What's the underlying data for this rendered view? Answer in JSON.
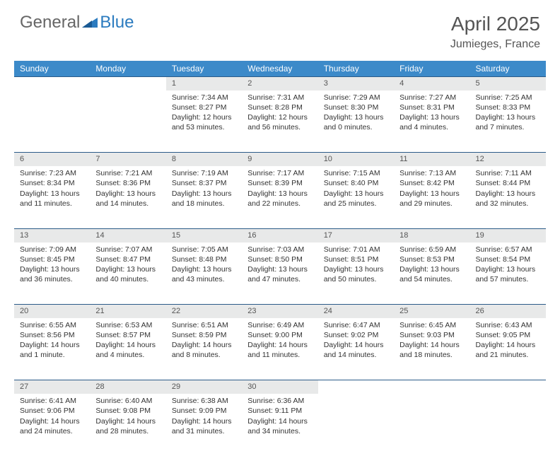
{
  "brand": {
    "part1": "General",
    "part2": "Blue"
  },
  "title": "April 2025",
  "location": "Jumieges, France",
  "colors": {
    "header_bg": "#3c8ac9",
    "header_text": "#ffffff",
    "daynum_bg": "#e8e9e9",
    "border": "#2b5b88",
    "text": "#333333",
    "title_text": "#555555"
  },
  "days_of_week": [
    "Sunday",
    "Monday",
    "Tuesday",
    "Wednesday",
    "Thursday",
    "Friday",
    "Saturday"
  ],
  "weeks": [
    {
      "nums": [
        "",
        "",
        "1",
        "2",
        "3",
        "4",
        "5"
      ],
      "cells": [
        null,
        null,
        {
          "sunrise": "Sunrise: 7:34 AM",
          "sunset": "Sunset: 8:27 PM",
          "day1": "Daylight: 12 hours",
          "day2": "and 53 minutes."
        },
        {
          "sunrise": "Sunrise: 7:31 AM",
          "sunset": "Sunset: 8:28 PM",
          "day1": "Daylight: 12 hours",
          "day2": "and 56 minutes."
        },
        {
          "sunrise": "Sunrise: 7:29 AM",
          "sunset": "Sunset: 8:30 PM",
          "day1": "Daylight: 13 hours",
          "day2": "and 0 minutes."
        },
        {
          "sunrise": "Sunrise: 7:27 AM",
          "sunset": "Sunset: 8:31 PM",
          "day1": "Daylight: 13 hours",
          "day2": "and 4 minutes."
        },
        {
          "sunrise": "Sunrise: 7:25 AM",
          "sunset": "Sunset: 8:33 PM",
          "day1": "Daylight: 13 hours",
          "day2": "and 7 minutes."
        }
      ]
    },
    {
      "nums": [
        "6",
        "7",
        "8",
        "9",
        "10",
        "11",
        "12"
      ],
      "cells": [
        {
          "sunrise": "Sunrise: 7:23 AM",
          "sunset": "Sunset: 8:34 PM",
          "day1": "Daylight: 13 hours",
          "day2": "and 11 minutes."
        },
        {
          "sunrise": "Sunrise: 7:21 AM",
          "sunset": "Sunset: 8:36 PM",
          "day1": "Daylight: 13 hours",
          "day2": "and 14 minutes."
        },
        {
          "sunrise": "Sunrise: 7:19 AM",
          "sunset": "Sunset: 8:37 PM",
          "day1": "Daylight: 13 hours",
          "day2": "and 18 minutes."
        },
        {
          "sunrise": "Sunrise: 7:17 AM",
          "sunset": "Sunset: 8:39 PM",
          "day1": "Daylight: 13 hours",
          "day2": "and 22 minutes."
        },
        {
          "sunrise": "Sunrise: 7:15 AM",
          "sunset": "Sunset: 8:40 PM",
          "day1": "Daylight: 13 hours",
          "day2": "and 25 minutes."
        },
        {
          "sunrise": "Sunrise: 7:13 AM",
          "sunset": "Sunset: 8:42 PM",
          "day1": "Daylight: 13 hours",
          "day2": "and 29 minutes."
        },
        {
          "sunrise": "Sunrise: 7:11 AM",
          "sunset": "Sunset: 8:44 PM",
          "day1": "Daylight: 13 hours",
          "day2": "and 32 minutes."
        }
      ]
    },
    {
      "nums": [
        "13",
        "14",
        "15",
        "16",
        "17",
        "18",
        "19"
      ],
      "cells": [
        {
          "sunrise": "Sunrise: 7:09 AM",
          "sunset": "Sunset: 8:45 PM",
          "day1": "Daylight: 13 hours",
          "day2": "and 36 minutes."
        },
        {
          "sunrise": "Sunrise: 7:07 AM",
          "sunset": "Sunset: 8:47 PM",
          "day1": "Daylight: 13 hours",
          "day2": "and 40 minutes."
        },
        {
          "sunrise": "Sunrise: 7:05 AM",
          "sunset": "Sunset: 8:48 PM",
          "day1": "Daylight: 13 hours",
          "day2": "and 43 minutes."
        },
        {
          "sunrise": "Sunrise: 7:03 AM",
          "sunset": "Sunset: 8:50 PM",
          "day1": "Daylight: 13 hours",
          "day2": "and 47 minutes."
        },
        {
          "sunrise": "Sunrise: 7:01 AM",
          "sunset": "Sunset: 8:51 PM",
          "day1": "Daylight: 13 hours",
          "day2": "and 50 minutes."
        },
        {
          "sunrise": "Sunrise: 6:59 AM",
          "sunset": "Sunset: 8:53 PM",
          "day1": "Daylight: 13 hours",
          "day2": "and 54 minutes."
        },
        {
          "sunrise": "Sunrise: 6:57 AM",
          "sunset": "Sunset: 8:54 PM",
          "day1": "Daylight: 13 hours",
          "day2": "and 57 minutes."
        }
      ]
    },
    {
      "nums": [
        "20",
        "21",
        "22",
        "23",
        "24",
        "25",
        "26"
      ],
      "cells": [
        {
          "sunrise": "Sunrise: 6:55 AM",
          "sunset": "Sunset: 8:56 PM",
          "day1": "Daylight: 14 hours",
          "day2": "and 1 minute."
        },
        {
          "sunrise": "Sunrise: 6:53 AM",
          "sunset": "Sunset: 8:57 PM",
          "day1": "Daylight: 14 hours",
          "day2": "and 4 minutes."
        },
        {
          "sunrise": "Sunrise: 6:51 AM",
          "sunset": "Sunset: 8:59 PM",
          "day1": "Daylight: 14 hours",
          "day2": "and 8 minutes."
        },
        {
          "sunrise": "Sunrise: 6:49 AM",
          "sunset": "Sunset: 9:00 PM",
          "day1": "Daylight: 14 hours",
          "day2": "and 11 minutes."
        },
        {
          "sunrise": "Sunrise: 6:47 AM",
          "sunset": "Sunset: 9:02 PM",
          "day1": "Daylight: 14 hours",
          "day2": "and 14 minutes."
        },
        {
          "sunrise": "Sunrise: 6:45 AM",
          "sunset": "Sunset: 9:03 PM",
          "day1": "Daylight: 14 hours",
          "day2": "and 18 minutes."
        },
        {
          "sunrise": "Sunrise: 6:43 AM",
          "sunset": "Sunset: 9:05 PM",
          "day1": "Daylight: 14 hours",
          "day2": "and 21 minutes."
        }
      ]
    },
    {
      "nums": [
        "27",
        "28",
        "29",
        "30",
        "",
        "",
        ""
      ],
      "cells": [
        {
          "sunrise": "Sunrise: 6:41 AM",
          "sunset": "Sunset: 9:06 PM",
          "day1": "Daylight: 14 hours",
          "day2": "and 24 minutes."
        },
        {
          "sunrise": "Sunrise: 6:40 AM",
          "sunset": "Sunset: 9:08 PM",
          "day1": "Daylight: 14 hours",
          "day2": "and 28 minutes."
        },
        {
          "sunrise": "Sunrise: 6:38 AM",
          "sunset": "Sunset: 9:09 PM",
          "day1": "Daylight: 14 hours",
          "day2": "and 31 minutes."
        },
        {
          "sunrise": "Sunrise: 6:36 AM",
          "sunset": "Sunset: 9:11 PM",
          "day1": "Daylight: 14 hours",
          "day2": "and 34 minutes."
        },
        null,
        null,
        null
      ]
    }
  ]
}
